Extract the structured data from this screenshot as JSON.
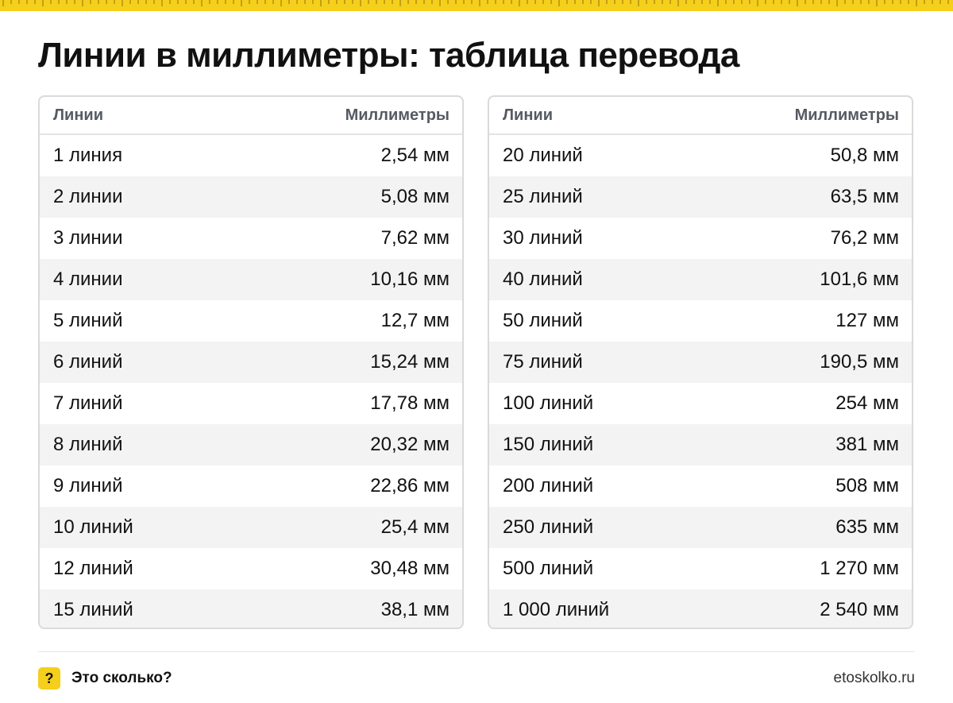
{
  "title": "Линии в миллиметры: таблица перевода",
  "tables": [
    {
      "header": {
        "col1": "Линии",
        "col2": "Миллиметры"
      },
      "rows": [
        {
          "lines": "1 линия",
          "mm": "2,54 мм"
        },
        {
          "lines": "2 линии",
          "mm": "5,08 мм"
        },
        {
          "lines": "3 линии",
          "mm": "7,62 мм"
        },
        {
          "lines": "4 линии",
          "mm": "10,16 мм"
        },
        {
          "lines": "5 линий",
          "mm": "12,7 мм"
        },
        {
          "lines": "6 линий",
          "mm": "15,24 мм"
        },
        {
          "lines": "7 линий",
          "mm": "17,78 мм"
        },
        {
          "lines": "8 линий",
          "mm": "20,32 мм"
        },
        {
          "lines": "9 линий",
          "mm": "22,86 мм"
        },
        {
          "lines": "10 линий",
          "mm": "25,4 мм"
        },
        {
          "lines": "12 линий",
          "mm": "30,48 мм"
        },
        {
          "lines": "15 линий",
          "mm": "38,1 мм"
        }
      ]
    },
    {
      "header": {
        "col1": "Линии",
        "col2": "Миллиметры"
      },
      "rows": [
        {
          "lines": "20 линий",
          "mm": "50,8 мм"
        },
        {
          "lines": "25 линий",
          "mm": "63,5 мм"
        },
        {
          "lines": "30 линий",
          "mm": "76,2 мм"
        },
        {
          "lines": "40 линий",
          "mm": "101,6 мм"
        },
        {
          "lines": "50 линий",
          "mm": "127 мм"
        },
        {
          "lines": "75 линий",
          "mm": "190,5 мм"
        },
        {
          "lines": "100 линий",
          "mm": "254 мм"
        },
        {
          "lines": "150 линий",
          "mm": "381 мм"
        },
        {
          "lines": "200 линий",
          "mm": "508 мм"
        },
        {
          "lines": "250 линий",
          "mm": "635 мм"
        },
        {
          "lines": "500 линий",
          "mm": "1 270 мм"
        },
        {
          "lines": "1 000 линий",
          "mm": "2 540 мм"
        }
      ]
    }
  ],
  "footer": {
    "badge": "?",
    "brand": "Это сколько?",
    "site": "etoskolko.ru"
  },
  "colors": {
    "accent": "#f5cf1b",
    "row_stripe": "#f3f3f4",
    "border": "#d9dadc"
  },
  "icons": {
    "ruler": "ruler-ticks-icon",
    "badge": "question-badge-icon"
  }
}
